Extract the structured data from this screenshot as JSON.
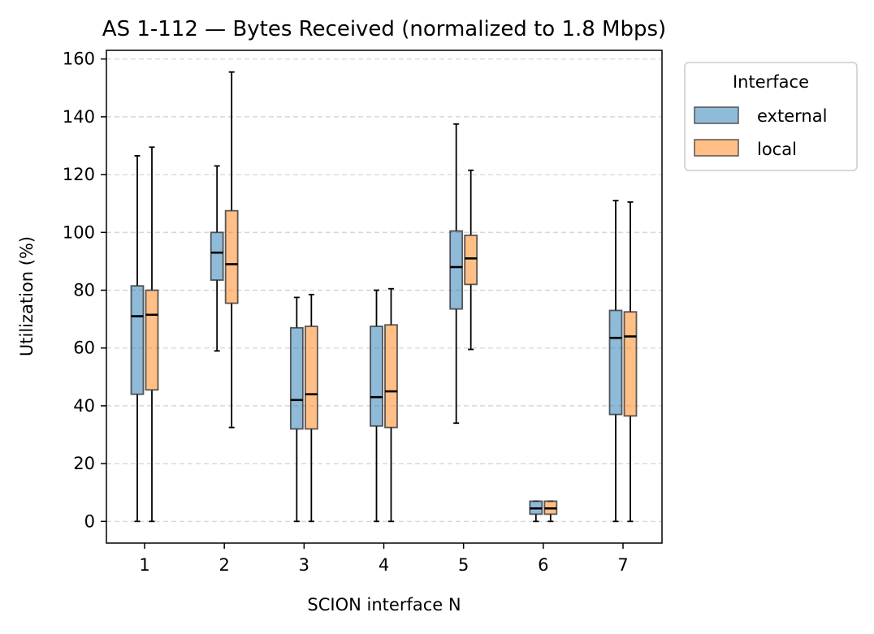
{
  "chart_data": {
    "type": "box",
    "title": "AS 1-112 — Bytes Received (normalized to 1.8 Mbps)",
    "xlabel": "SCION interface N",
    "ylabel": "Utilization (%)",
    "ylim": [
      -7.5,
      163
    ],
    "yticks": [
      0,
      20,
      40,
      60,
      80,
      100,
      120,
      140,
      160
    ],
    "grid": "y-dashed",
    "categories": [
      "1",
      "2",
      "3",
      "4",
      "5",
      "6",
      "7"
    ],
    "legend": {
      "title": "Interface",
      "placement": "outside-top-right"
    },
    "series": [
      {
        "name": "external",
        "color": "#1f77b4",
        "boxes": [
          {
            "whislo": 0,
            "q1": 44,
            "med": 71,
            "q3": 81.5,
            "whishi": 126.5
          },
          {
            "whislo": 59,
            "q1": 83.5,
            "med": 93,
            "q3": 100,
            "whishi": 123
          },
          {
            "whislo": 0,
            "q1": 32,
            "med": 42,
            "q3": 67,
            "whishi": 77.5
          },
          {
            "whislo": 0,
            "q1": 33,
            "med": 43,
            "q3": 67.5,
            "whishi": 80
          },
          {
            "whislo": 34,
            "q1": 73.5,
            "med": 88,
            "q3": 100.5,
            "whishi": 137.5
          },
          {
            "whislo": 0,
            "q1": 2.5,
            "med": 4.5,
            "q3": 7,
            "whishi": 7
          },
          {
            "whislo": 0,
            "q1": 37,
            "med": 63.5,
            "q3": 73,
            "whishi": 111
          }
        ]
      },
      {
        "name": "local",
        "color": "#ff7f0e",
        "boxes": [
          {
            "whislo": 0,
            "q1": 45.5,
            "med": 71.5,
            "q3": 80,
            "whishi": 129.5
          },
          {
            "whislo": 32.5,
            "q1": 75.5,
            "med": 89,
            "q3": 107.5,
            "whishi": 155.5
          },
          {
            "whislo": 0,
            "q1": 32,
            "med": 44,
            "q3": 67.5,
            "whishi": 78.5
          },
          {
            "whislo": 0,
            "q1": 32.5,
            "med": 45,
            "q3": 68,
            "whishi": 80.5
          },
          {
            "whislo": 59.5,
            "q1": 82,
            "med": 91,
            "q3": 99,
            "whishi": 121.5
          },
          {
            "whislo": 0,
            "q1": 2.5,
            "med": 4.5,
            "q3": 7,
            "whishi": 7
          },
          {
            "whislo": 0,
            "q1": 36.5,
            "med": 64,
            "q3": 72.5,
            "whishi": 110.5
          }
        ]
      }
    ]
  }
}
